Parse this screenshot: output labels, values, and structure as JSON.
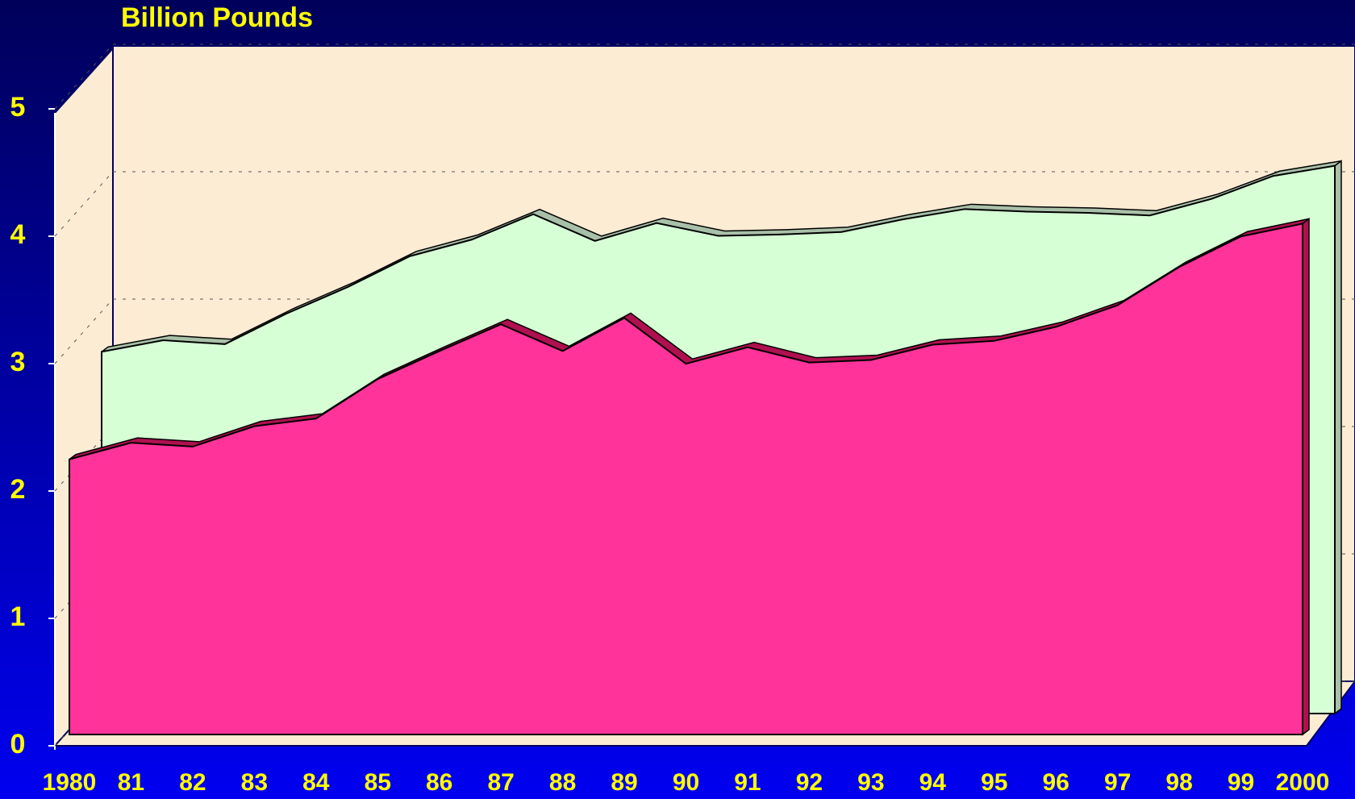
{
  "chart_data": {
    "type": "area3d",
    "title": "Billion Pounds",
    "categories": [
      "1980",
      "81",
      "82",
      "83",
      "84",
      "85",
      "86",
      "87",
      "88",
      "89",
      "90",
      "91",
      "92",
      "93",
      "94",
      "95",
      "96",
      "97",
      "98",
      "99",
      "2000"
    ],
    "series": [
      {
        "color": "#ff3399",
        "values": [
          2.16,
          2.29,
          2.26,
          2.42,
          2.48,
          2.79,
          3.01,
          3.22,
          3.01,
          3.27,
          2.91,
          3.04,
          2.92,
          2.94,
          3.06,
          3.09,
          3.2,
          3.37,
          3.67,
          3.91,
          4.01
        ]
      },
      {
        "color": "#d6ffd6",
        "values": [
          2.84,
          2.93,
          2.9,
          3.14,
          3.35,
          3.59,
          3.72,
          3.92,
          3.71,
          3.85,
          3.75,
          3.76,
          3.78,
          3.88,
          3.96,
          3.94,
          3.93,
          3.91,
          4.04,
          4.22,
          4.3
        ]
      }
    ],
    "ylim": [
      0,
      5
    ],
    "yticks": [
      0,
      1,
      2,
      3,
      4,
      5
    ],
    "grid": true
  }
}
